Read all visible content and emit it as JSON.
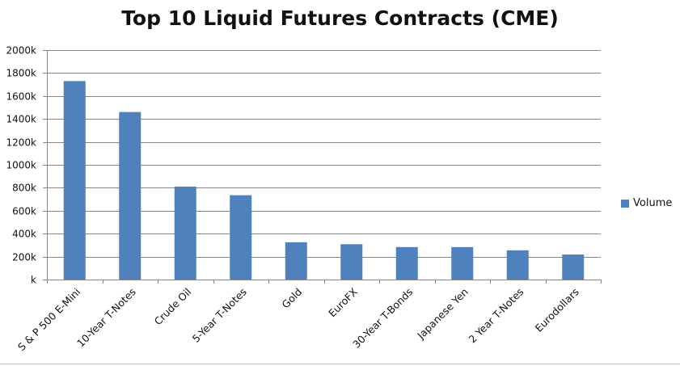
{
  "chart_data": {
    "type": "bar",
    "title": "Top 10 Liquid Futures Contracts (CME)",
    "xlabel": "",
    "ylabel": "",
    "categories": [
      "S & P 500 E-Mini",
      "10-Year T-Notes",
      "Crude Oil",
      "5-Year T-Notes",
      "Gold",
      "EuroFX",
      "30-Year T-Bonds",
      "Japanese Yen",
      "2 Year T-Notes",
      "Eurodollars"
    ],
    "series": [
      {
        "name": "Volume",
        "values": [
          1730,
          1460,
          810,
          735,
          325,
          308,
          283,
          283,
          255,
          218
        ]
      }
    ],
    "ylim": [
      0,
      2000
    ],
    "yticks": [
      0,
      200,
      400,
      600,
      800,
      1000,
      1200,
      1400,
      1600,
      1800,
      2000
    ],
    "ytick_labels": [
      "k",
      "200k",
      "400k",
      "600k",
      "800k",
      "1000k",
      "1200k",
      "1400k",
      "1600k",
      "1800k",
      "2000k"
    ],
    "grid": true,
    "legend_position": "right",
    "colors": {
      "bar": "#4f81bd",
      "grid": "#868686",
      "axis": "#868686"
    }
  }
}
